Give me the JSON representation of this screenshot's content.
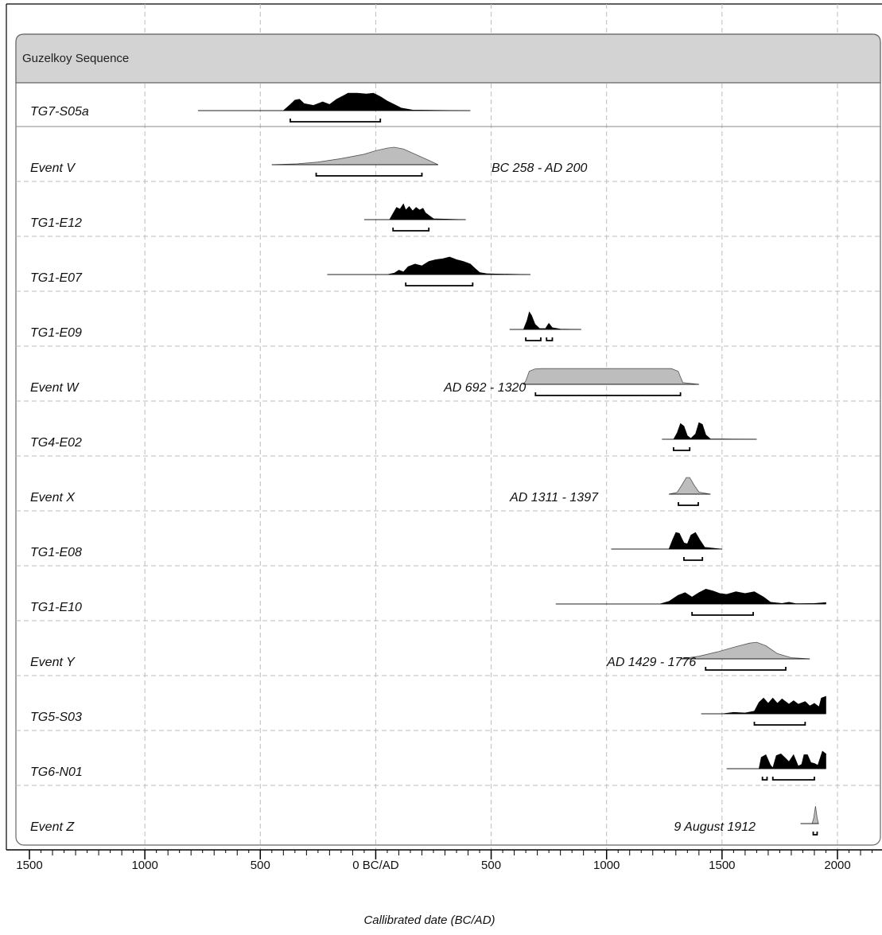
{
  "chart_data": {
    "type": "area",
    "title": "Guzelkoy Sequence",
    "xlabel": "Callibrated date (BC/AD)",
    "ylabel": "",
    "xlim": [
      -1500,
      2200
    ],
    "x_ticks": [
      {
        "value": -1500,
        "label": "1500"
      },
      {
        "value": -1000,
        "label": "1000"
      },
      {
        "value": -500,
        "label": "500"
      },
      {
        "value": 0,
        "label": "0 BC/AD"
      },
      {
        "value": 500,
        "label": "500"
      },
      {
        "value": 1000,
        "label": "1000"
      },
      {
        "value": 1500,
        "label": "1500"
      },
      {
        "value": 2000,
        "label": "2000"
      }
    ],
    "grid": true,
    "colors": {
      "sample": "#000000",
      "event": "#bdbdbd",
      "frame_header": "#d3d3d3"
    },
    "rows": [
      {
        "label": "TG7-S05a",
        "kind": "sample",
        "range_label": "",
        "curve": [
          [
            -770,
            0
          ],
          [
            -400,
            0
          ],
          [
            -370,
            0.35
          ],
          [
            -350,
            0.6
          ],
          [
            -330,
            0.65
          ],
          [
            -310,
            0.4
          ],
          [
            -270,
            0.3
          ],
          [
            -230,
            0.5
          ],
          [
            -200,
            0.35
          ],
          [
            -170,
            0.65
          ],
          [
            -140,
            0.85
          ],
          [
            -120,
            1.0
          ],
          [
            -80,
            1.0
          ],
          [
            -40,
            0.95
          ],
          [
            -10,
            1.0
          ],
          [
            20,
            0.8
          ],
          [
            50,
            0.55
          ],
          [
            80,
            0.35
          ],
          [
            110,
            0.15
          ],
          [
            160,
            0.03
          ],
          [
            410,
            0
          ]
        ],
        "intervals": [
          [
            -370,
            20
          ]
        ]
      },
      {
        "label": "Event V",
        "kind": "event",
        "range_label": "BC 258 - AD 200",
        "curve": [
          [
            -450,
            0
          ],
          [
            -340,
            0.05
          ],
          [
            -250,
            0.15
          ],
          [
            -150,
            0.35
          ],
          [
            -50,
            0.6
          ],
          [
            0,
            0.8
          ],
          [
            50,
            0.95
          ],
          [
            80,
            1.0
          ],
          [
            120,
            0.9
          ],
          [
            170,
            0.6
          ],
          [
            230,
            0.25
          ],
          [
            270,
            0
          ]
        ],
        "intervals": [
          [
            -258,
            200
          ]
        ]
      },
      {
        "label": "TG1-E12",
        "kind": "sample",
        "range_label": "",
        "curve": [
          [
            -50,
            0
          ],
          [
            60,
            0
          ],
          [
            75,
            0.35
          ],
          [
            90,
            0.7
          ],
          [
            105,
            0.6
          ],
          [
            120,
            0.9
          ],
          [
            130,
            0.55
          ],
          [
            145,
            0.75
          ],
          [
            160,
            0.5
          ],
          [
            175,
            0.7
          ],
          [
            190,
            0.55
          ],
          [
            205,
            0.65
          ],
          [
            215,
            0.4
          ],
          [
            235,
            0.2
          ],
          [
            250,
            0.05
          ],
          [
            390,
            0
          ]
        ],
        "intervals": [
          [
            75,
            230
          ]
        ]
      },
      {
        "label": "TG1-E07",
        "kind": "sample",
        "range_label": "",
        "curve": [
          [
            -210,
            0
          ],
          [
            50,
            0
          ],
          [
            80,
            0.08
          ],
          [
            100,
            0.25
          ],
          [
            120,
            0.15
          ],
          [
            140,
            0.45
          ],
          [
            170,
            0.6
          ],
          [
            200,
            0.5
          ],
          [
            230,
            0.75
          ],
          [
            260,
            0.85
          ],
          [
            290,
            0.9
          ],
          [
            320,
            1.0
          ],
          [
            350,
            0.85
          ],
          [
            380,
            0.75
          ],
          [
            410,
            0.6
          ],
          [
            430,
            0.35
          ],
          [
            450,
            0.12
          ],
          [
            480,
            0.05
          ],
          [
            520,
            0.03
          ],
          [
            670,
            0
          ]
        ],
        "intervals": [
          [
            130,
            420
          ]
        ]
      },
      {
        "label": "TG1-E09",
        "kind": "sample",
        "range_label": "",
        "curve": [
          [
            580,
            0
          ],
          [
            640,
            0
          ],
          [
            655,
            0.5
          ],
          [
            665,
            1.0
          ],
          [
            675,
            0.8
          ],
          [
            690,
            0.3
          ],
          [
            710,
            0.05
          ],
          [
            735,
            0.05
          ],
          [
            750,
            0.35
          ],
          [
            765,
            0.1
          ],
          [
            800,
            0.02
          ],
          [
            890,
            0
          ]
        ],
        "intervals": [
          [
            650,
            715
          ],
          [
            740,
            765
          ]
        ]
      },
      {
        "label": "Event W",
        "kind": "event",
        "range_label": "AD 692 - 1320",
        "curve": [
          [
            640,
            0
          ],
          [
            650,
            0.2
          ],
          [
            665,
            0.75
          ],
          [
            690,
            0.88
          ],
          [
            720,
            0.9
          ],
          [
            1280,
            0.9
          ],
          [
            1310,
            0.75
          ],
          [
            1330,
            0.1
          ],
          [
            1400,
            0
          ]
        ],
        "intervals": [
          [
            692,
            1320
          ]
        ]
      },
      {
        "label": "TG4-E02",
        "kind": "sample",
        "range_label": "",
        "curve": [
          [
            1240,
            0
          ],
          [
            1290,
            0
          ],
          [
            1305,
            0.35
          ],
          [
            1320,
            0.9
          ],
          [
            1335,
            0.75
          ],
          [
            1350,
            0.2
          ],
          [
            1365,
            0.05
          ],
          [
            1385,
            0.3
          ],
          [
            1400,
            0.95
          ],
          [
            1415,
            0.85
          ],
          [
            1430,
            0.25
          ],
          [
            1450,
            0.02
          ],
          [
            1650,
            0
          ]
        ],
        "intervals": [
          [
            1290,
            1360
          ]
        ]
      },
      {
        "label": "Event X",
        "kind": "event",
        "range_label": "AD 1311 - 1397",
        "curve": [
          [
            1270,
            0
          ],
          [
            1305,
            0.1
          ],
          [
            1325,
            0.5
          ],
          [
            1345,
            0.95
          ],
          [
            1360,
            0.95
          ],
          [
            1380,
            0.5
          ],
          [
            1400,
            0.12
          ],
          [
            1450,
            0
          ]
        ],
        "intervals": [
          [
            1311,
            1397
          ]
        ]
      },
      {
        "label": "TG1-E08",
        "kind": "sample",
        "range_label": "",
        "curve": [
          [
            1020,
            0
          ],
          [
            1270,
            0
          ],
          [
            1285,
            0.5
          ],
          [
            1300,
            0.95
          ],
          [
            1315,
            0.9
          ],
          [
            1335,
            0.35
          ],
          [
            1350,
            0.3
          ],
          [
            1365,
            0.8
          ],
          [
            1385,
            0.95
          ],
          [
            1405,
            0.5
          ],
          [
            1425,
            0.1
          ],
          [
            1500,
            0
          ]
        ],
        "intervals": [
          [
            1335,
            1415
          ]
        ]
      },
      {
        "label": "TG1-E10",
        "kind": "sample",
        "range_label": "",
        "curve": [
          [
            780,
            0
          ],
          [
            1230,
            0
          ],
          [
            1270,
            0.15
          ],
          [
            1310,
            0.5
          ],
          [
            1340,
            0.65
          ],
          [
            1370,
            0.4
          ],
          [
            1400,
            0.65
          ],
          [
            1430,
            0.85
          ],
          [
            1460,
            0.75
          ],
          [
            1490,
            0.6
          ],
          [
            1520,
            0.55
          ],
          [
            1560,
            0.7
          ],
          [
            1600,
            0.6
          ],
          [
            1640,
            0.7
          ],
          [
            1680,
            0.4
          ],
          [
            1710,
            0.1
          ],
          [
            1760,
            0.03
          ],
          [
            1790,
            0.1
          ],
          [
            1820,
            0.02
          ],
          [
            1900,
            0.03
          ],
          [
            1950,
            0.08
          ],
          [
            1950,
            0
          ]
        ],
        "intervals": [
          [
            1370,
            1635
          ]
        ]
      },
      {
        "label": "Event Y",
        "kind": "event",
        "range_label": "AD 1429 - 1776",
        "curve": [
          [
            1320,
            0
          ],
          [
            1400,
            0.15
          ],
          [
            1480,
            0.4
          ],
          [
            1560,
            0.7
          ],
          [
            1620,
            0.9
          ],
          [
            1650,
            0.95
          ],
          [
            1690,
            0.75
          ],
          [
            1740,
            0.3
          ],
          [
            1800,
            0.07
          ],
          [
            1880,
            0
          ]
        ],
        "intervals": [
          [
            1429,
            1776
          ]
        ]
      },
      {
        "label": "TG5-S03",
        "kind": "sample",
        "range_label": "",
        "curve": [
          [
            1410,
            0
          ],
          [
            1500,
            0
          ],
          [
            1550,
            0.08
          ],
          [
            1600,
            0.05
          ],
          [
            1640,
            0.15
          ],
          [
            1660,
            0.65
          ],
          [
            1680,
            0.9
          ],
          [
            1700,
            0.6
          ],
          [
            1720,
            0.9
          ],
          [
            1740,
            0.6
          ],
          [
            1760,
            0.85
          ],
          [
            1790,
            0.55
          ],
          [
            1810,
            0.75
          ],
          [
            1830,
            0.55
          ],
          [
            1860,
            0.7
          ],
          [
            1880,
            0.45
          ],
          [
            1900,
            0.6
          ],
          [
            1920,
            0.4
          ],
          [
            1930,
            0.9
          ],
          [
            1950,
            1.0
          ],
          [
            1950,
            0
          ]
        ],
        "intervals": [
          [
            1640,
            1860
          ]
        ]
      },
      {
        "label": "TG6-N01",
        "kind": "sample",
        "range_label": "",
        "curve": [
          [
            1520,
            0
          ],
          [
            1660,
            0
          ],
          [
            1670,
            0.65
          ],
          [
            1690,
            0.8
          ],
          [
            1710,
            0.2
          ],
          [
            1720,
            0.05
          ],
          [
            1735,
            0.75
          ],
          [
            1755,
            0.85
          ],
          [
            1775,
            0.6
          ],
          [
            1790,
            0.4
          ],
          [
            1810,
            0.8
          ],
          [
            1830,
            0.15
          ],
          [
            1845,
            0.25
          ],
          [
            1855,
            0.8
          ],
          [
            1870,
            0.8
          ],
          [
            1885,
            0.35
          ],
          [
            1900,
            0.3
          ],
          [
            1915,
            0.2
          ],
          [
            1935,
            1.0
          ],
          [
            1950,
            0.85
          ],
          [
            1950,
            0
          ]
        ],
        "intervals": [
          [
            1675,
            1695
          ],
          [
            1720,
            1900
          ]
        ]
      },
      {
        "label": "Event Z",
        "kind": "event",
        "range_label": "9 August 1912",
        "curve": [
          [
            1840,
            0
          ],
          [
            1890,
            0
          ],
          [
            1897,
            0.3
          ],
          [
            1905,
            1.0
          ],
          [
            1912,
            0.3
          ],
          [
            1918,
            0
          ]
        ],
        "intervals": [
          [
            1895,
            1912
          ]
        ]
      }
    ]
  }
}
